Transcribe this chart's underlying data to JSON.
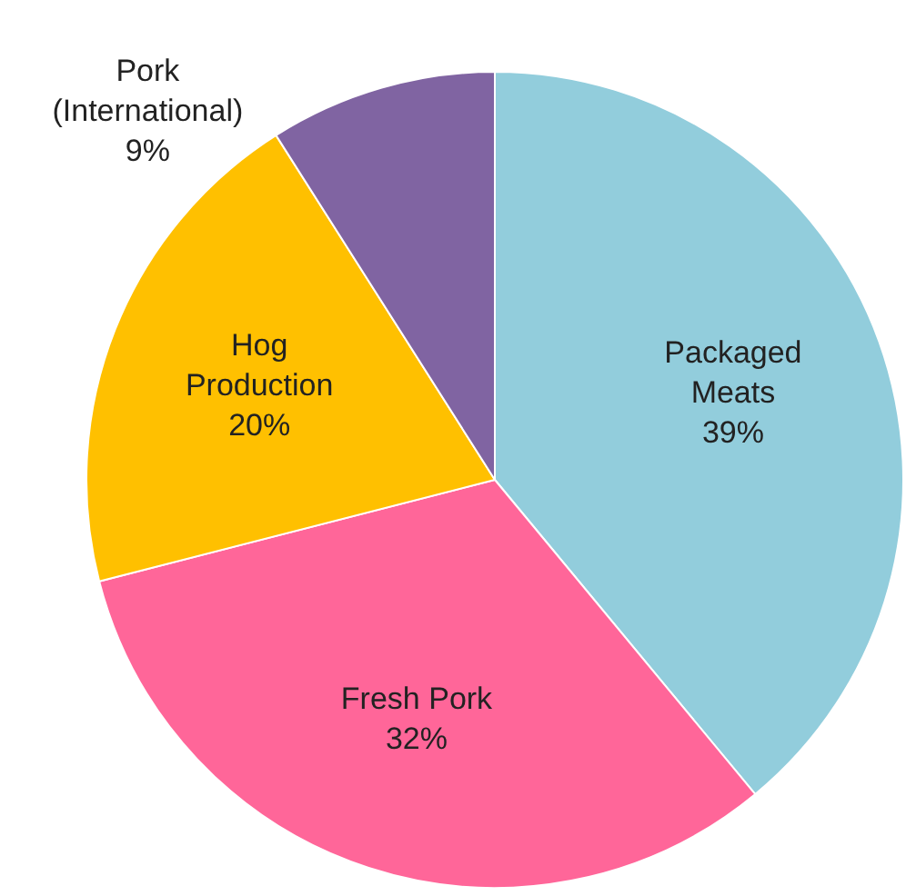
{
  "chart_data": {
    "type": "pie",
    "categories": [
      "Packaged Meats",
      "Fresh Pork",
      "Hog Production",
      "Pork (International)"
    ],
    "values": [
      39,
      32,
      20,
      9
    ],
    "value_labels": [
      "39%",
      "32%",
      "20%",
      "9%"
    ],
    "colors": [
      "#92cddc",
      "#ff6699",
      "#ffc000",
      "#8064a2"
    ],
    "legend": false
  }
}
